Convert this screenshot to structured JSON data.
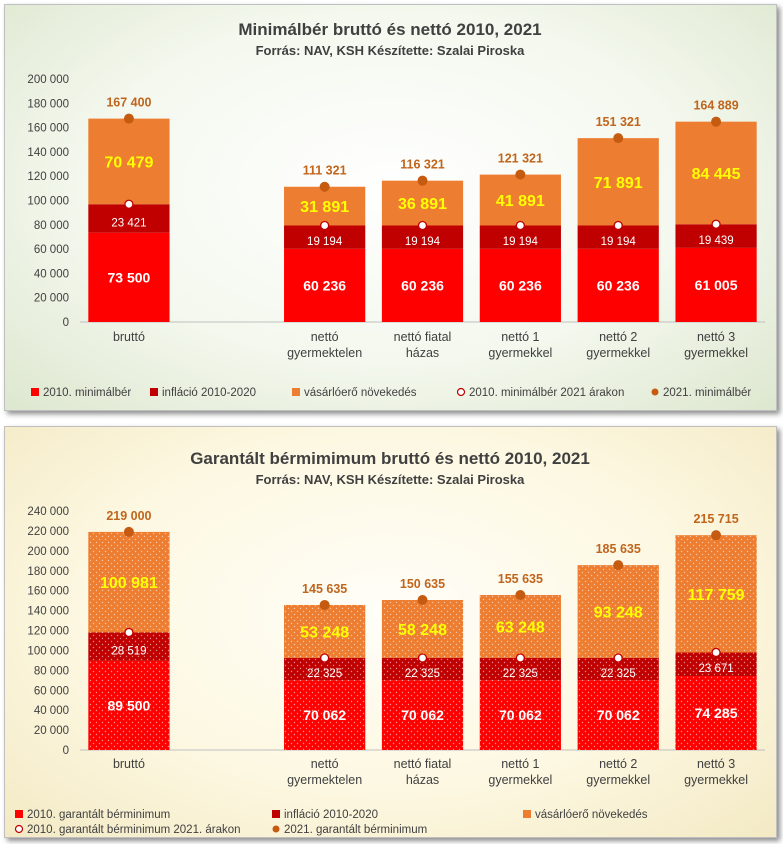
{
  "colors": {
    "base": "#ff0000",
    "inflation": "#c00000",
    "growth": "#ed7d31",
    "marker2021": "#c55a11",
    "total_label": "#c0651c",
    "growth_label": "#ffff00"
  },
  "chart_data": [
    {
      "type": "bar",
      "stacked": true,
      "title": "Minimálbér bruttó és nettó 2010, 2021",
      "subtitle": "Forrás: NAV, KSH Készítette: Szalai Piroska",
      "categories": [
        [
          "bruttó"
        ],
        [],
        [
          "nettó",
          "gyermektelen"
        ],
        [
          "nettó fiatal",
          "házas"
        ],
        [
          "nettó 1",
          "gyermekkel"
        ],
        [
          "nettó 2",
          "gyermekkel"
        ],
        [
          "nettó 3",
          "gyermekkel"
        ]
      ],
      "ylim": [
        0,
        200000
      ],
      "yticks": [
        0,
        20000,
        40000,
        60000,
        80000,
        100000,
        120000,
        140000,
        160000,
        180000,
        200000
      ],
      "ytick_labels": [
        "0",
        "20 000",
        "40 000",
        "60 000",
        "80 000",
        "100 000",
        "120 000",
        "140 000",
        "160 000",
        "180 000",
        "200 000"
      ],
      "series": [
        {
          "name": "2010. minimálbér",
          "values": [
            73500,
            null,
            60236,
            60236,
            60236,
            60236,
            61005
          ],
          "labels": [
            "73 500",
            "",
            "60 236",
            "60 236",
            "60 236",
            "60 236",
            "61 005"
          ]
        },
        {
          "name": "infláció 2010-2020",
          "values": [
            23421,
            null,
            19194,
            19194,
            19194,
            19194,
            19439
          ],
          "labels": [
            "23 421",
            "",
            "19 194",
            "19 194",
            "19 194",
            "19 194",
            "19 439"
          ]
        },
        {
          "name": "vásárlóerő növekedés",
          "values": [
            70479,
            null,
            31891,
            36891,
            41891,
            71891,
            84445
          ],
          "labels": [
            "70 479",
            "",
            "31 891",
            "36 891",
            "41 891",
            "71 891",
            "84 445"
          ]
        }
      ],
      "markers": [
        {
          "name": "2010. minimálbér 2021 árakon",
          "values": [
            96921,
            null,
            79430,
            79430,
            79430,
            79430,
            80444
          ]
        },
        {
          "name": "2021. minimálbér",
          "values": [
            167400,
            null,
            111321,
            116321,
            121321,
            151321,
            164889
          ],
          "labels": [
            "167 400",
            "",
            "111 321",
            "116 321",
            "121 321",
            "151 321",
            "164 889"
          ]
        }
      ],
      "legend_position": "bottom",
      "pattern": "solid"
    },
    {
      "type": "bar",
      "stacked": true,
      "title": "Garantált bérmimimum bruttó és nettó 2010, 2021",
      "subtitle": "Forrás: NAV, KSH Készítette: Szalai Piroska",
      "categories": [
        [
          "bruttó"
        ],
        [],
        [
          "nettó",
          "gyermektelen"
        ],
        [
          "nettó fiatal",
          "házas"
        ],
        [
          "nettó 1",
          "gyermekkel"
        ],
        [
          "nettó 2",
          "gyermekkel"
        ],
        [
          "nettó 3",
          "gyermekkel"
        ]
      ],
      "ylim": [
        0,
        240000
      ],
      "yticks": [
        0,
        20000,
        40000,
        60000,
        80000,
        100000,
        120000,
        140000,
        160000,
        180000,
        200000,
        220000,
        240000
      ],
      "ytick_labels": [
        "0",
        "20 000",
        "40 000",
        "60 000",
        "80 000",
        "100 000",
        "120 000",
        "140 000",
        "160 000",
        "180 000",
        "200 000",
        "220 000",
        "240 000"
      ],
      "series": [
        {
          "name": "2010. garantált bérminimum",
          "values": [
            89500,
            null,
            70062,
            70062,
            70062,
            70062,
            74285
          ],
          "labels": [
            "89 500",
            "",
            "70 062",
            "70 062",
            "70 062",
            "70 062",
            "74 285"
          ]
        },
        {
          "name": "infláció 2010-2020",
          "values": [
            28519,
            null,
            22325,
            22325,
            22325,
            22325,
            23671
          ],
          "labels": [
            "28 519",
            "",
            "22 325",
            "22 325",
            "22 325",
            "22 325",
            "23 671"
          ]
        },
        {
          "name": "vásárlóerő növekedés",
          "values": [
            100981,
            null,
            53248,
            58248,
            63248,
            93248,
            117759
          ],
          "labels": [
            "100 981",
            "",
            "53 248",
            "58 248",
            "63 248",
            "93 248",
            "117 759"
          ]
        }
      ],
      "markers": [
        {
          "name": "2010. garantált bérminimum 2021. árakon",
          "values": [
            118019,
            null,
            92387,
            92387,
            92387,
            92387,
            97956
          ]
        },
        {
          "name": "2021. garantált bérminimum",
          "values": [
            219000,
            null,
            145635,
            150635,
            155635,
            185635,
            215715
          ],
          "labels": [
            "219 000",
            "",
            "145 635",
            "150 635",
            "155 635",
            "185 635",
            "215 715"
          ]
        }
      ],
      "legend_position": "bottom",
      "pattern": "dotted"
    }
  ]
}
